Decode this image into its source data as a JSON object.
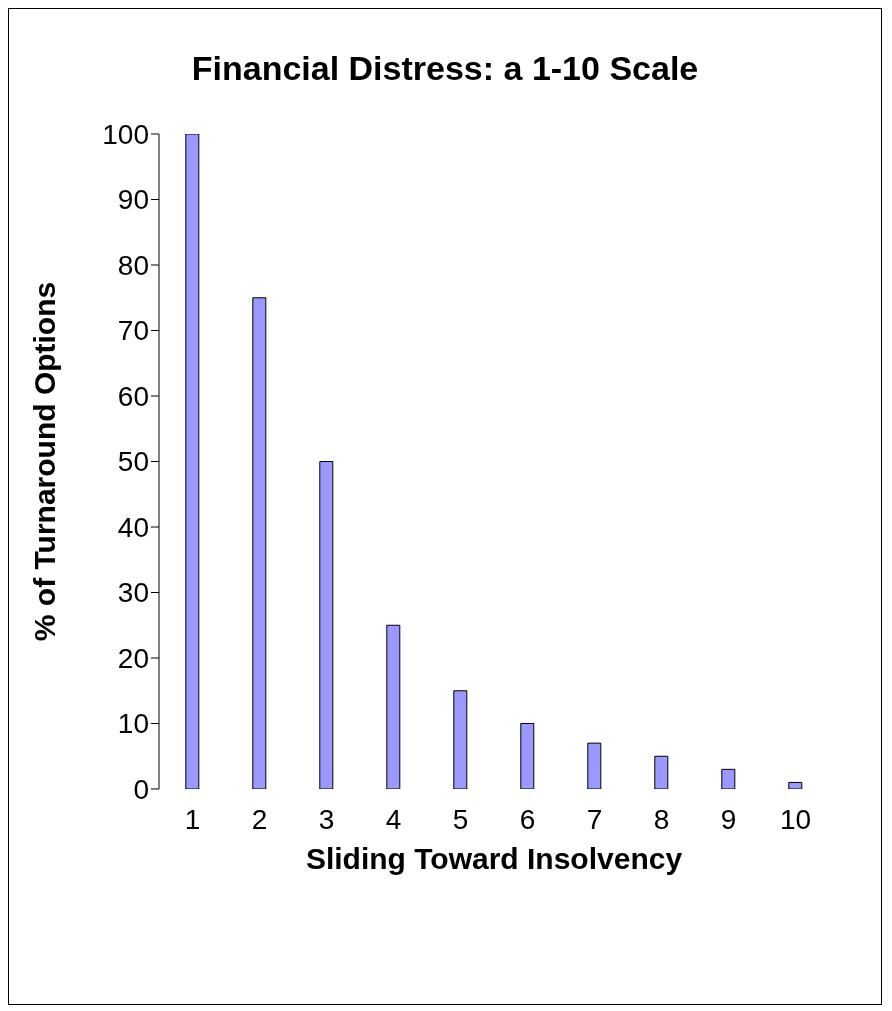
{
  "chart_data": {
    "type": "bar",
    "title": "Financial Distress: a 1-10 Scale",
    "xlabel": "Sliding Toward Insolvency",
    "ylabel": "% of Turnaround Options",
    "categories": [
      "1",
      "2",
      "3",
      "4",
      "5",
      "6",
      "7",
      "8",
      "9",
      "10"
    ],
    "values": [
      100,
      75,
      50,
      25,
      15,
      10,
      7,
      5,
      3,
      1
    ],
    "color": "#9999ff",
    "ylim": [
      0,
      100
    ],
    "yticks": [
      0,
      10,
      20,
      30,
      40,
      50,
      60,
      70,
      80,
      90,
      100
    ],
    "grid": false,
    "legend": false
  }
}
